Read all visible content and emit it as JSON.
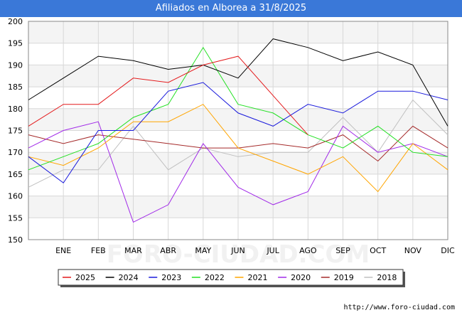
{
  "header": {
    "title": "Afiliados en Alborea a 31/8/2025"
  },
  "watermark": "FORO-CIUDAD.COM",
  "footer": {
    "url": "http://www.foro-ciudad.com"
  },
  "chart_data": {
    "type": "line",
    "title": "Afiliados en Alborea a 31/8/2025",
    "xlabel": "",
    "ylabel": "",
    "categories": [
      "",
      "ENE",
      "FEB",
      "MAR",
      "ABR",
      "MAY",
      "JUN",
      "JUL",
      "AGO",
      "SEP",
      "OCT",
      "NOV",
      "DIC"
    ],
    "ylim": [
      150,
      200
    ],
    "yticks": [
      150,
      155,
      160,
      165,
      170,
      175,
      180,
      185,
      190,
      195,
      200
    ],
    "legend_position": "bottom",
    "series": [
      {
        "name": "2025",
        "color": "#e41a1c",
        "values": [
          176,
          181,
          181,
          187,
          186,
          190,
          192,
          183,
          174,
          null,
          null,
          null,
          null
        ]
      },
      {
        "name": "2024",
        "color": "#000000",
        "values": [
          182,
          187,
          192,
          191,
          189,
          190,
          187,
          196,
          194,
          191,
          193,
          190,
          176
        ]
      },
      {
        "name": "2023",
        "color": "#1a1adc",
        "values": [
          169,
          163,
          175,
          175,
          184,
          186,
          179,
          176,
          181,
          179,
          184,
          184,
          182
        ]
      },
      {
        "name": "2022",
        "color": "#22e022",
        "values": [
          166,
          169,
          172,
          178,
          181,
          194,
          181,
          179,
          174,
          171,
          176,
          170,
          169
        ]
      },
      {
        "name": "2021",
        "color": "#ffa500",
        "values": [
          169,
          167,
          171,
          177,
          177,
          181,
          171,
          168,
          165,
          169,
          161,
          172,
          166
        ]
      },
      {
        "name": "2020",
        "color": "#a12ae8",
        "values": [
          171,
          175,
          177,
          154,
          158,
          172,
          162,
          158,
          161,
          176,
          170,
          172,
          169
        ]
      },
      {
        "name": "2019",
        "color": "#a52a2a",
        "values": [
          174,
          172,
          174,
          173,
          172,
          171,
          171,
          172,
          171,
          174,
          168,
          176,
          171
        ]
      },
      {
        "name": "2018",
        "color": "#c0c0c0",
        "values": [
          162,
          166,
          166,
          176,
          166,
          171,
          169,
          170,
          170,
          178,
          170,
          182,
          174
        ]
      }
    ]
  }
}
